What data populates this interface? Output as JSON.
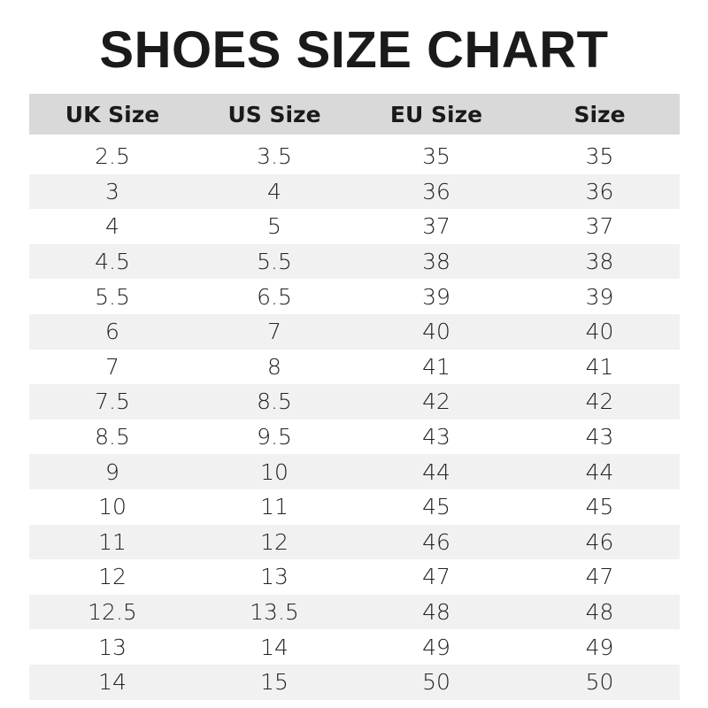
{
  "title": "SHOES SIZE CHART",
  "headers": [
    "UK Size",
    "US Size",
    "EU Size",
    "Size"
  ],
  "rows": [
    [
      "2.5",
      "3.5",
      "35",
      "35"
    ],
    [
      "3",
      "4",
      "36",
      "36"
    ],
    [
      "4",
      "5",
      "37",
      "37"
    ],
    [
      "4.5",
      "5.5",
      "38",
      "38"
    ],
    [
      "5.5",
      "6.5",
      "39",
      "39"
    ],
    [
      "6",
      "7",
      "40",
      "40"
    ],
    [
      "7",
      "8",
      "41",
      "41"
    ],
    [
      "7.5",
      "8.5",
      "42",
      "42"
    ],
    [
      "8.5",
      "9.5",
      "43",
      "43"
    ],
    [
      "9",
      "10",
      "44",
      "44"
    ],
    [
      "10",
      "11",
      "45",
      "45"
    ],
    [
      "11",
      "12",
      "46",
      "46"
    ],
    [
      "12",
      "13",
      "47",
      "47"
    ],
    [
      "12.5",
      "13.5",
      "48",
      "48"
    ],
    [
      "13",
      "14",
      "49",
      "49"
    ],
    [
      "14",
      "15",
      "50",
      "50"
    ]
  ],
  "colors": {
    "header_bg": "#d9d9d9",
    "stripe_bg": "#f1f1f1",
    "text": "#1a1a1a"
  }
}
